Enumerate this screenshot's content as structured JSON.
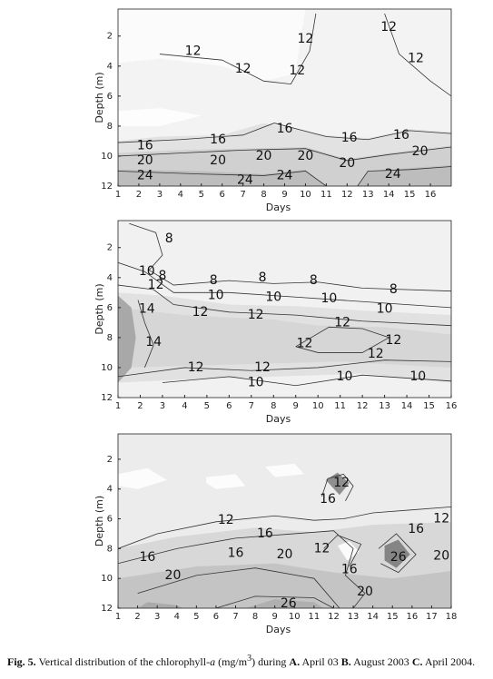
{
  "chart_data": [
    {
      "type": "contour",
      "xlabel": "Days",
      "ylabel": "Depth (m)",
      "xlim": [
        1,
        17
      ],
      "xticks": [
        1,
        2,
        3,
        4,
        5,
        6,
        7,
        8,
        9,
        10,
        11,
        12,
        13,
        14,
        15,
        16
      ],
      "ylim": [
        12,
        0.2
      ],
      "yticks": [
        2,
        4,
        6,
        8,
        10,
        12
      ],
      "contour_labels": [
        12,
        12,
        12,
        12,
        12,
        12,
        16,
        16,
        16,
        16,
        16,
        20,
        20,
        20,
        20,
        20,
        20,
        24,
        24,
        24,
        24
      ]
    },
    {
      "type": "contour",
      "xlabel": "Days",
      "ylabel": "Depth (m)",
      "xlim": [
        1,
        16
      ],
      "xticks": [
        1,
        2,
        3,
        4,
        5,
        6,
        7,
        8,
        9,
        10,
        11,
        12,
        13,
        14,
        15,
        16
      ],
      "ylim": [
        12,
        0.2
      ],
      "yticks": [
        2,
        4,
        6,
        8,
        10,
        12
      ],
      "contour_labels": [
        8,
        8,
        8,
        8,
        8,
        8,
        10,
        12,
        10,
        10,
        10,
        10,
        14,
        14,
        12,
        12,
        12,
        12,
        12,
        12,
        12,
        12,
        10,
        10,
        10
      ]
    },
    {
      "type": "contour",
      "xlabel": "Days",
      "ylabel": "Depth (m)",
      "xlim": [
        1,
        18
      ],
      "xticks": [
        1,
        2,
        3,
        4,
        5,
        6,
        7,
        8,
        9,
        10,
        11,
        12,
        13,
        14,
        15,
        16,
        17,
        18
      ],
      "ylim": [
        12,
        0.3
      ],
      "yticks": [
        2,
        4,
        6,
        8,
        10,
        12
      ],
      "contour_labels": [
        12,
        16,
        12,
        12,
        16,
        16,
        16,
        16,
        12,
        16,
        20,
        20,
        20,
        20,
        26,
        26
      ]
    }
  ],
  "caption": [
    "Fig. 5.",
    "Vertical distribution of the chlorophyll-",
    "a",
    "(mg/m",
    "3",
    ") during",
    "A.",
    "April 03",
    "B.",
    "August 2003",
    "C.",
    "April 2004."
  ]
}
